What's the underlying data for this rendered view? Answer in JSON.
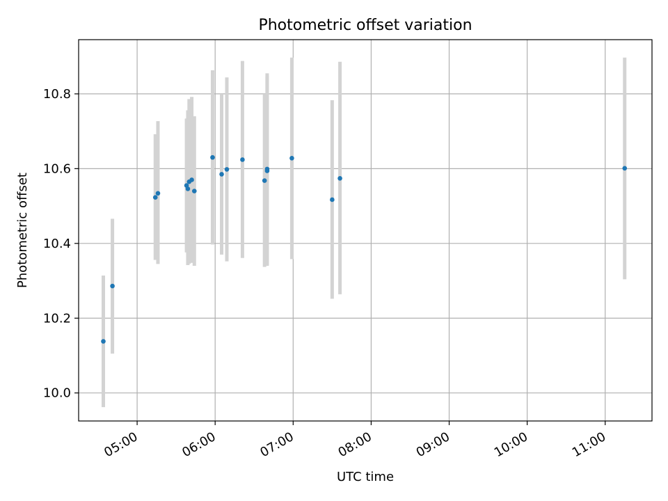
{
  "chart_data": {
    "type": "scatter",
    "title": "Photometric offset variation",
    "xlabel": "UTC time",
    "ylabel": "Photometric offset",
    "xlim": [
      "04:15",
      "11:36"
    ],
    "ylim": [
      9.925,
      10.945
    ],
    "grid": true,
    "x_ticks": [
      "05:00",
      "06:00",
      "07:00",
      "08:00",
      "09:00",
      "10:00",
      "11:00"
    ],
    "y_ticks": [
      10.0,
      10.2,
      10.4,
      10.6,
      10.8
    ],
    "y_tick_labels": [
      "10.0",
      "10.2",
      "10.4",
      "10.6",
      "10.8"
    ],
    "point_color": "#1f77b4",
    "errorbar_color": "#d3d3d3",
    "points": [
      {
        "time": "04:34",
        "y": 10.138,
        "ylow": 9.962,
        "yhigh": 10.314
      },
      {
        "time": "04:41",
        "y": 10.286,
        "ylow": 10.105,
        "yhigh": 10.466
      },
      {
        "time": "05:14",
        "y": 10.523,
        "ylow": 10.356,
        "yhigh": 10.692
      },
      {
        "time": "05:16",
        "y": 10.534,
        "ylow": 10.345,
        "yhigh": 10.727
      },
      {
        "time": "05:38",
        "y": 10.555,
        "ylow": 10.376,
        "yhigh": 10.734
      },
      {
        "time": "05:39",
        "y": 10.546,
        "ylow": 10.342,
        "yhigh": 10.756
      },
      {
        "time": "05:40",
        "y": 10.565,
        "ylow": 10.346,
        "yhigh": 10.786
      },
      {
        "time": "05:42",
        "y": 10.57,
        "ylow": 10.348,
        "yhigh": 10.792
      },
      {
        "time": "05:44",
        "y": 10.54,
        "ylow": 10.34,
        "yhigh": 10.74
      },
      {
        "time": "05:58",
        "y": 10.63,
        "ylow": 10.397,
        "yhigh": 10.863
      },
      {
        "time": "06:05",
        "y": 10.585,
        "ylow": 10.37,
        "yhigh": 10.8
      },
      {
        "time": "06:09",
        "y": 10.598,
        "ylow": 10.352,
        "yhigh": 10.844
      },
      {
        "time": "06:21",
        "y": 10.624,
        "ylow": 10.361,
        "yhigh": 10.888
      },
      {
        "time": "06:38",
        "y": 10.568,
        "ylow": 10.337,
        "yhigh": 10.8
      },
      {
        "time": "06:40",
        "y": 10.599,
        "ylow": 10.343,
        "yhigh": 10.855
      },
      {
        "time": "06:40",
        "y": 10.594,
        "ylow": 10.34,
        "yhigh": 10.848
      },
      {
        "time": "06:59",
        "y": 10.628,
        "ylow": 10.358,
        "yhigh": 10.897
      },
      {
        "time": "07:30",
        "y": 10.517,
        "ylow": 10.252,
        "yhigh": 10.783
      },
      {
        "time": "07:36",
        "y": 10.574,
        "ylow": 10.264,
        "yhigh": 10.886
      },
      {
        "time": "11:15",
        "y": 10.601,
        "ylow": 10.304,
        "yhigh": 10.897
      }
    ]
  }
}
